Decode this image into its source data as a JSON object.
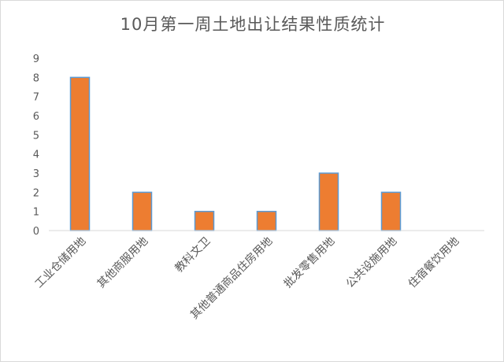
{
  "chart_data": {
    "type": "bar",
    "title": "10月第一周土地出让结果性质统计",
    "categories": [
      "工业仓储用地",
      "其他商服用地",
      "教科文卫",
      "其他普通商品住房用地",
      "批发零售用地",
      "公共设施用地",
      "住宿餐饮用地"
    ],
    "values": [
      8,
      2,
      1,
      1,
      3,
      2,
      0
    ],
    "ylim": [
      0,
      9
    ],
    "yticks": [
      "0",
      "1",
      "2",
      "3",
      "4",
      "5",
      "6",
      "7",
      "8",
      "9"
    ],
    "xlabel": "",
    "ylabel": "",
    "grid": false,
    "bar_color": "#ED7D31",
    "bar_edge_color": "#5B9BD5"
  }
}
